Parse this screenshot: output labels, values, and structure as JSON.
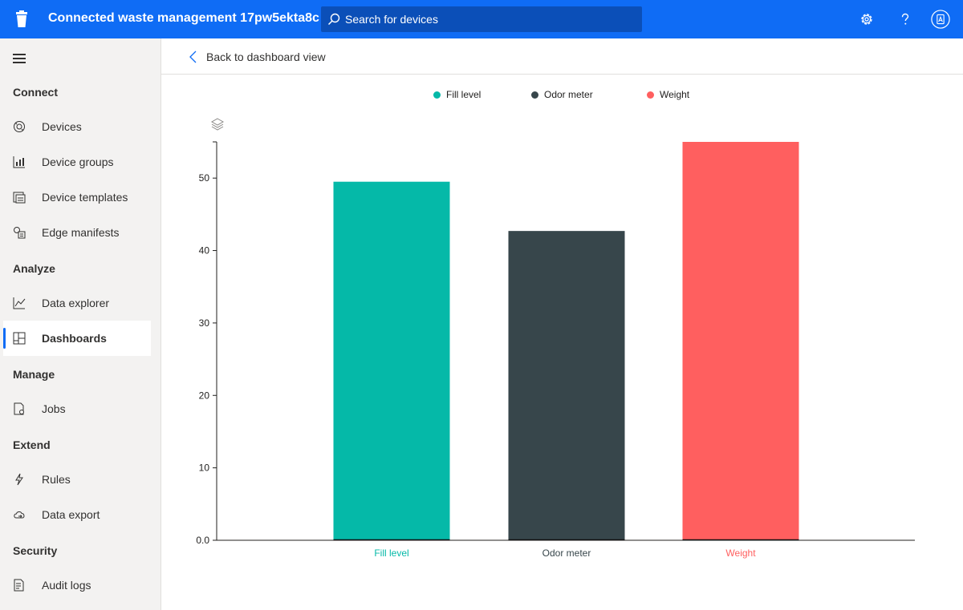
{
  "app": {
    "title": "Connected waste management 17pw5ekta8c",
    "logo_icon": "trash-can-icon"
  },
  "search": {
    "placeholder": "Search for devices",
    "value": ""
  },
  "header_icons": [
    "gear-icon",
    "help-icon",
    "account-icon"
  ],
  "sidebar": {
    "menu_icon": "hamburger-icon",
    "sections": [
      {
        "header": "Connect",
        "items": [
          {
            "label": "Devices",
            "icon": "devices-icon"
          },
          {
            "label": "Device groups",
            "icon": "device-groups-icon"
          },
          {
            "label": "Device templates",
            "icon": "device-templates-icon"
          },
          {
            "label": "Edge manifests",
            "icon": "edge-manifests-icon"
          }
        ]
      },
      {
        "header": "Analyze",
        "items": [
          {
            "label": "Data explorer",
            "icon": "data-explorer-icon"
          },
          {
            "label": "Dashboards",
            "icon": "dashboards-icon",
            "active": true
          }
        ]
      },
      {
        "header": "Manage",
        "items": [
          {
            "label": "Jobs",
            "icon": "jobs-icon"
          }
        ]
      },
      {
        "header": "Extend",
        "items": [
          {
            "label": "Rules",
            "icon": "rules-icon"
          },
          {
            "label": "Data export",
            "icon": "data-export-icon"
          }
        ]
      },
      {
        "header": "Security",
        "items": [
          {
            "label": "Audit logs",
            "icon": "audit-logs-icon"
          }
        ]
      }
    ]
  },
  "main": {
    "back_label": "Back to dashboard view"
  },
  "colors": {
    "brand": "#0f6cf5",
    "fill_level": "#05b9a8",
    "odor_meter": "#37464b",
    "weight": "#ff5f5f"
  },
  "chart_data": {
    "type": "bar",
    "categories": [
      "Fill level",
      "Odor meter",
      "Weight"
    ],
    "values": [
      49.5,
      42.7,
      55
    ],
    "colors": [
      "#05b9a8",
      "#37464b",
      "#ff5f5f"
    ],
    "category_label_colors": [
      "#05b9a8",
      "#37464b",
      "#ff5f5f"
    ],
    "legend": [
      "Fill level",
      "Odor meter",
      "Weight"
    ],
    "legend_position": "top-center",
    "yticks": [
      "0.0",
      "10",
      "20",
      "30",
      "40",
      "50"
    ],
    "ylim": [
      0,
      55
    ],
    "grid": false,
    "title": "",
    "xlabel": "",
    "ylabel": ""
  }
}
